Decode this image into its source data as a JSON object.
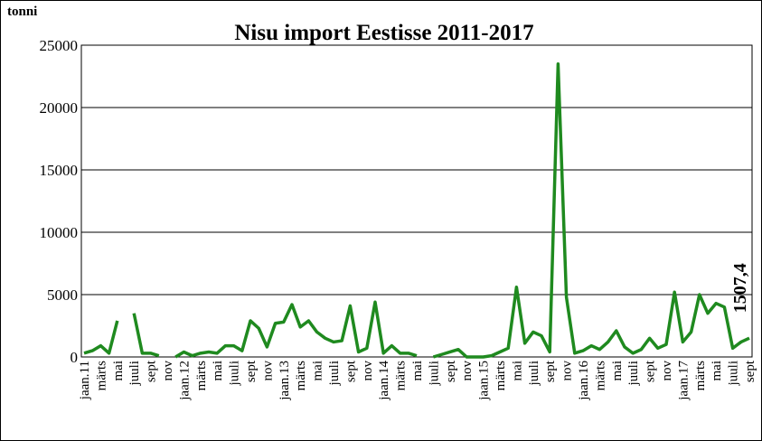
{
  "chart_data": {
    "type": "line",
    "title": "Nisu import Eestisse 2011-2017",
    "ylabel": "tonni",
    "categories": [
      "jaan.11",
      null,
      "märts",
      null,
      "mai",
      null,
      "juuli",
      null,
      "sept",
      null,
      "nov",
      null,
      "jaan.12",
      null,
      "märts",
      null,
      "mai",
      null,
      "juuli",
      null,
      "sept",
      null,
      "nov",
      null,
      "jaan.13",
      null,
      "märts",
      null,
      "mai",
      null,
      "juuli",
      null,
      "sept",
      null,
      "nov",
      null,
      "jaan.14",
      null,
      "märts",
      null,
      "mai",
      null,
      "juuli",
      null,
      "sept",
      null,
      "nov",
      null,
      "jaan.15",
      null,
      "märts",
      null,
      "mai",
      null,
      "juuli",
      null,
      "sept",
      null,
      "nov",
      null,
      "jaan.16",
      null,
      "märts",
      null,
      "mai",
      null,
      "juuli",
      null,
      "sept",
      null,
      "nov",
      null,
      "jaan.17",
      null,
      "märts",
      null,
      "mai",
      null,
      "juuli",
      null,
      "sept"
    ],
    "series": [
      {
        "name": "Nisu import",
        "color": "#1f8a1f",
        "values": [
          300,
          500,
          900,
          300,
          2900,
          null,
          3500,
          300,
          300,
          100,
          null,
          0,
          400,
          100,
          300,
          400,
          300,
          900,
          900,
          500,
          2900,
          2300,
          800,
          2700,
          2800,
          4200,
          2400,
          2900,
          2000,
          1500,
          1200,
          1300,
          4100,
          400,
          700,
          4400,
          300,
          900,
          300,
          300,
          100,
          null,
          0,
          200,
          400,
          600,
          0,
          0,
          0,
          100,
          400,
          700,
          5600,
          1100,
          2000,
          1700,
          400,
          23500,
          4800,
          300,
          500,
          900,
          600,
          1200,
          2100,
          800,
          300,
          600,
          1500,
          700,
          1000,
          5200,
          1200,
          2000,
          5000,
          3500,
          4300,
          4000,
          700,
          1200,
          1507.4
        ],
        "value_labels": [
          null,
          null,
          null,
          null,
          null,
          null,
          null,
          null,
          null,
          null,
          null,
          null,
          null,
          null,
          null,
          null,
          null,
          null,
          null,
          null,
          null,
          null,
          null,
          null,
          null,
          null,
          null,
          null,
          null,
          null,
          null,
          null,
          null,
          null,
          null,
          null,
          null,
          null,
          null,
          null,
          null,
          null,
          null,
          null,
          null,
          null,
          null,
          null,
          null,
          null,
          null,
          null,
          null,
          null,
          null,
          null,
          null,
          null,
          null,
          null,
          null,
          null,
          null,
          null,
          null,
          null,
          null,
          null,
          null,
          null,
          null,
          null,
          null,
          null,
          null,
          null,
          null,
          null,
          null,
          null,
          "1507,4"
        ]
      }
    ],
    "ylim": [
      0,
      25000
    ],
    "yticks": [
      0,
      5000,
      10000,
      15000,
      20000,
      25000
    ],
    "grid": true
  }
}
